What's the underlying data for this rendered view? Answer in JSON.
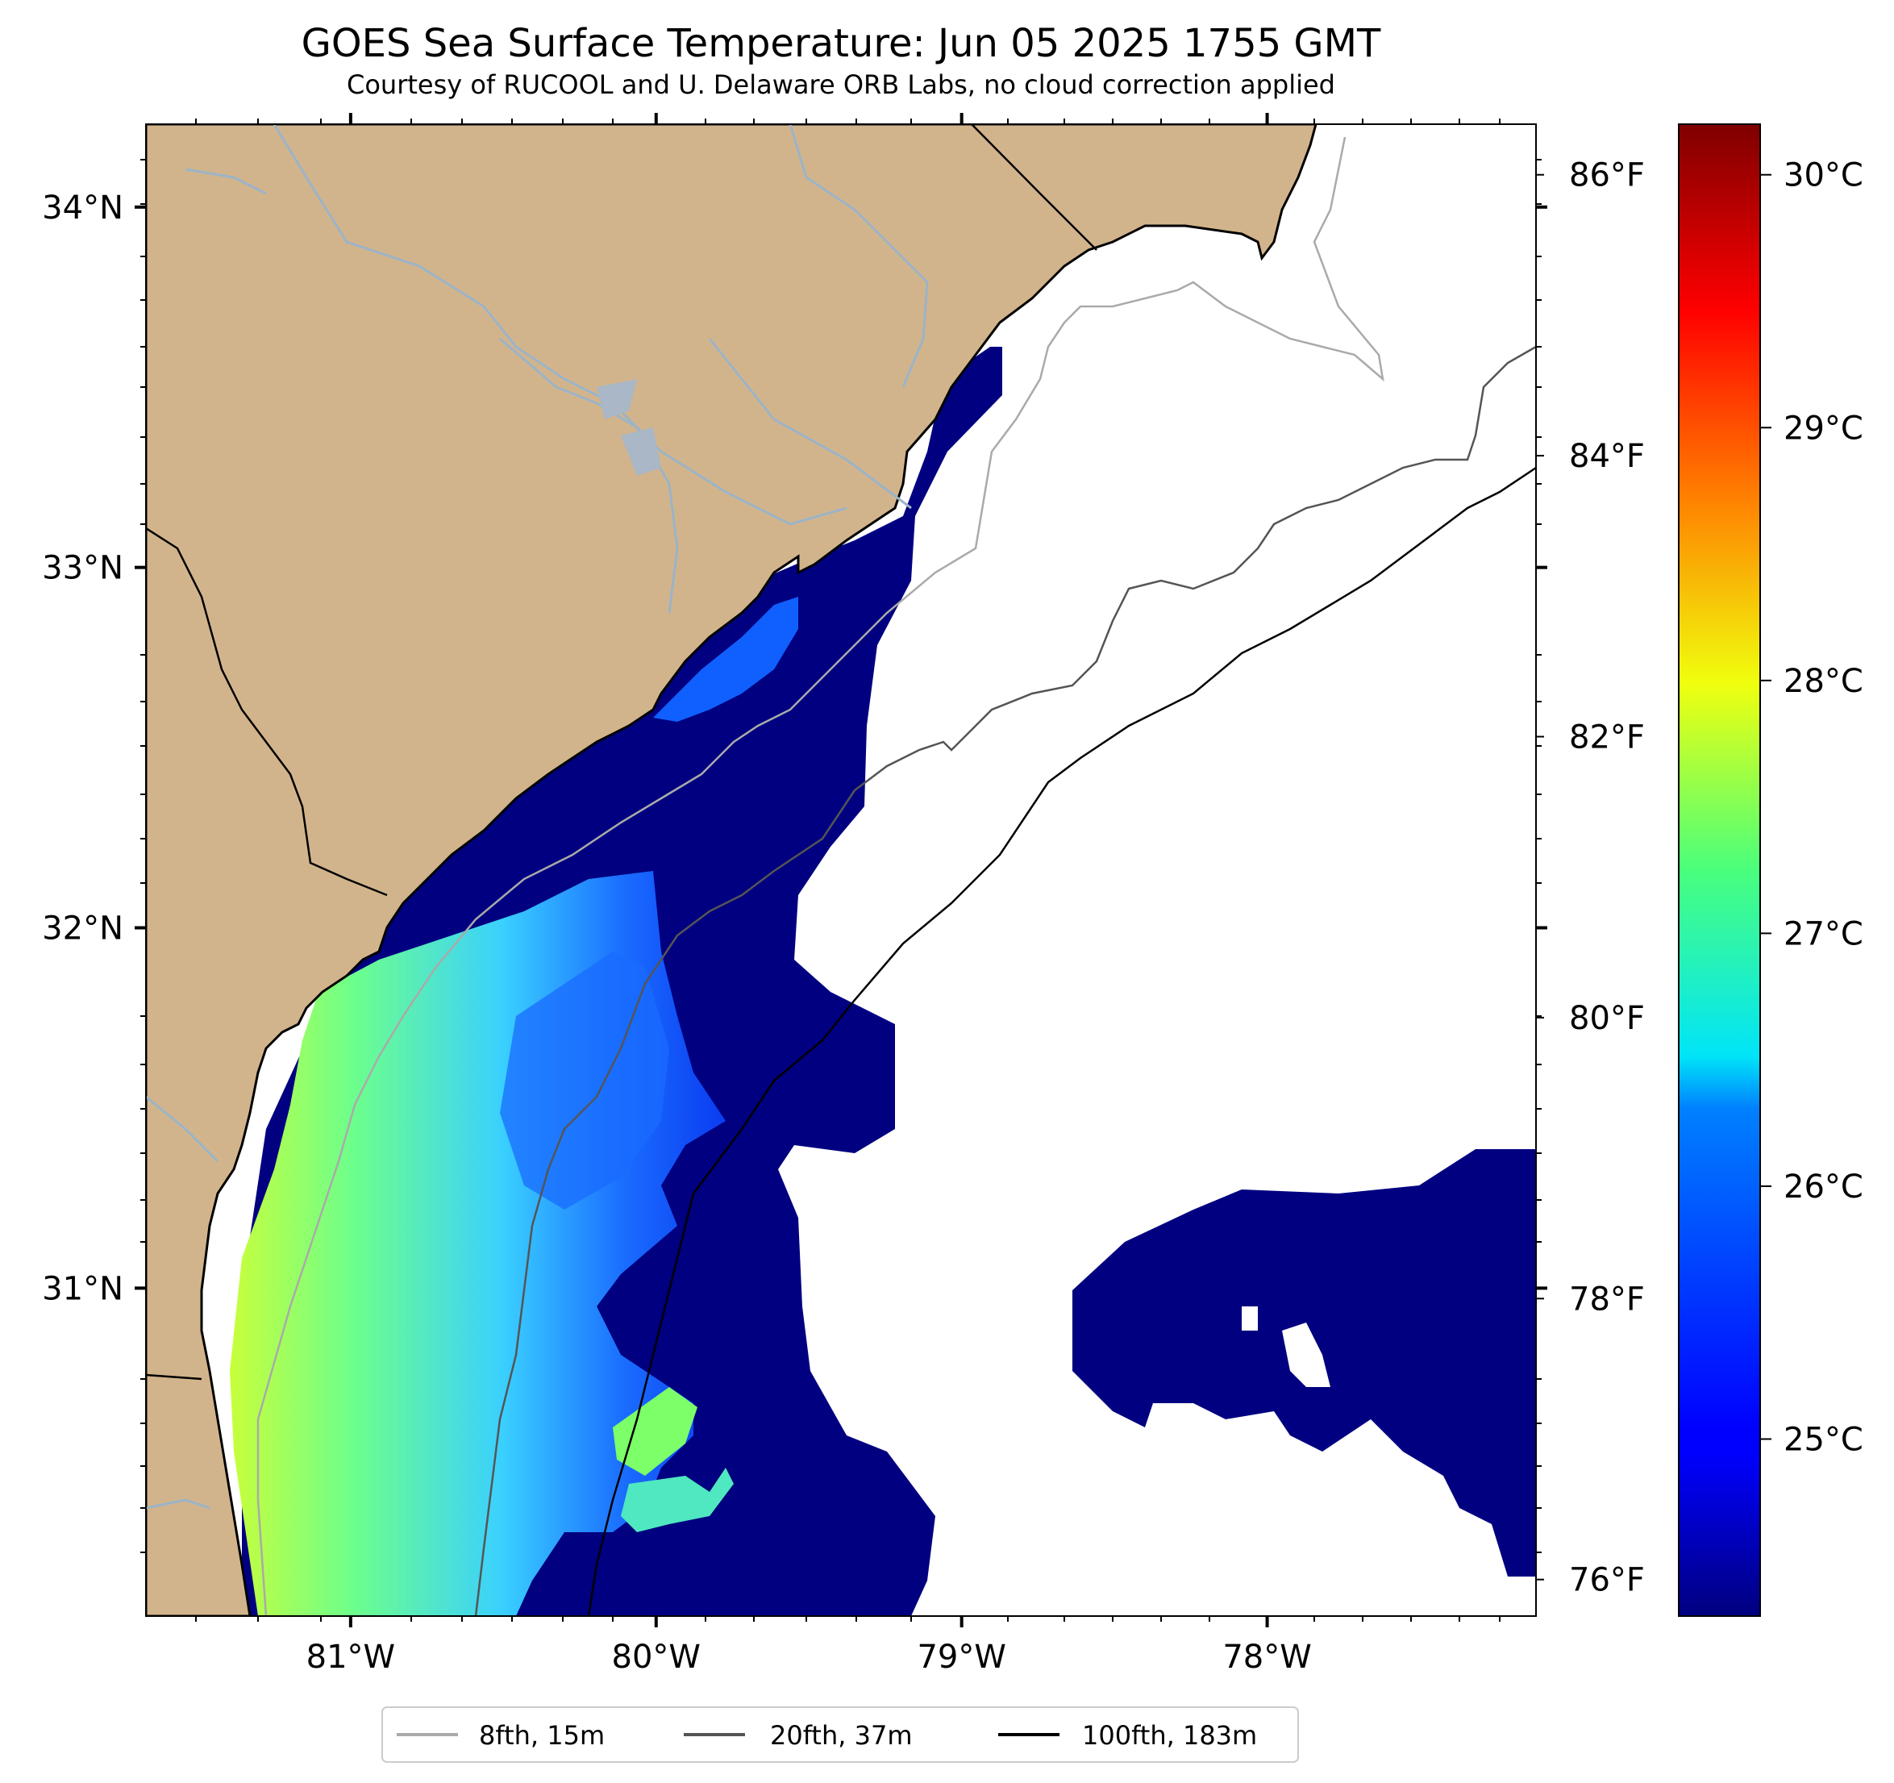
{
  "title": "GOES Sea Surface Temperature: Jun 05 2025 1755 GMT",
  "subtitle": "Courtesy of RUCOOL and U. Delaware ORB Labs, no cloud correction applied",
  "map": {
    "lon_range": [
      -81.67,
      -77.12
    ],
    "lat_range": [
      30.09,
      34.23
    ],
    "lon_ticks": [
      {
        "value": -81,
        "label": "81°W"
      },
      {
        "value": -80,
        "label": "80°W"
      },
      {
        "value": -79,
        "label": "79°W"
      },
      {
        "value": -78,
        "label": "78°W"
      }
    ],
    "lat_ticks": [
      {
        "value": 34,
        "label": "34°N"
      },
      {
        "value": 33,
        "label": "33°N"
      },
      {
        "value": 32,
        "label": "32°N"
      },
      {
        "value": 31,
        "label": "31°N"
      }
    ],
    "land_color": "#d2b48c",
    "river_color": "#9bb4c8",
    "cloud_color": "#ffffff"
  },
  "temperature_axis_f": {
    "ticks": [
      {
        "value": 86,
        "label": "86°F"
      },
      {
        "value": 84,
        "label": "84°F"
      },
      {
        "value": 82,
        "label": "82°F"
      },
      {
        "value": 80,
        "label": "80°F"
      },
      {
        "value": 78,
        "label": "78°F"
      },
      {
        "value": 76,
        "label": "76°F"
      }
    ]
  },
  "colorbar": {
    "range_c": [
      24.3,
      30.2
    ],
    "colormap": "jet",
    "ticks": [
      {
        "value": 30,
        "label": "30°C"
      },
      {
        "value": 29,
        "label": "29°C"
      },
      {
        "value": 28,
        "label": "28°C"
      },
      {
        "value": 27,
        "label": "27°C"
      },
      {
        "value": 26,
        "label": "26°C"
      },
      {
        "value": 25,
        "label": "25°C"
      }
    ]
  },
  "legend": {
    "items": [
      {
        "label": "8fth, 15m",
        "color": "#aaaaaa"
      },
      {
        "label": "20fth, 37m",
        "color": "#555555"
      },
      {
        "label": "100fth, 183m",
        "color": "#000000"
      }
    ]
  }
}
